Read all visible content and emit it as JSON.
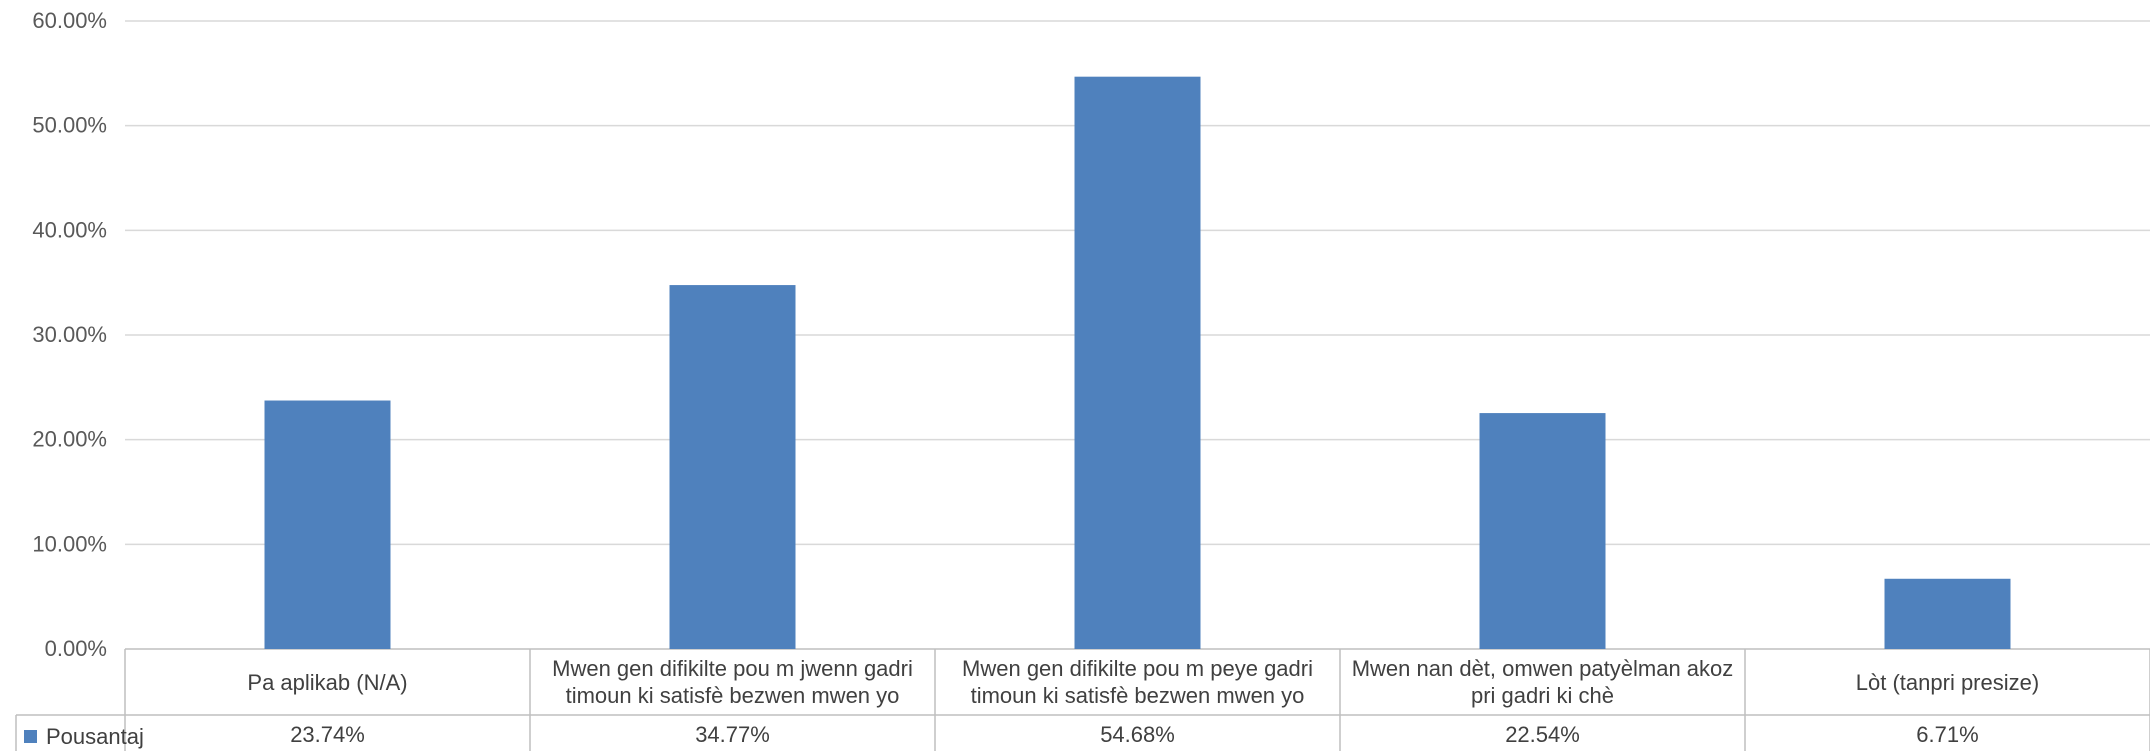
{
  "chart_data": {
    "type": "bar",
    "categories": [
      "Pa aplikab (N/A)",
      "Mwen gen difikilte pou m jwenn gadri timoun ki satisfè bezwen mwen yo",
      "Mwen gen difikilte pou m peye gadri timoun ki satisfè bezwen mwen yo",
      "Mwen nan dèt, omwen patyèlman akoz pri gadri ki chè",
      "Lòt (tanpri presize)"
    ],
    "series": [
      {
        "name": "Pousantaj",
        "values": [
          23.74,
          34.77,
          54.68,
          22.54,
          6.71
        ],
        "labels": [
          "23.74%",
          "34.77%",
          "54.68%",
          "22.54%",
          "6.71%"
        ]
      }
    ],
    "ylim": [
      0,
      60
    ],
    "yticks": [
      "0.00%",
      "10.00%",
      "20.00%",
      "30.00%",
      "40.00%",
      "50.00%",
      "60.00%"
    ],
    "grid": true,
    "legend_position": "bottom-left (data table)",
    "colors": {
      "bar": "#4F81BD",
      "grid": "#D9D9D9",
      "axis": "#BFBFBF"
    }
  }
}
